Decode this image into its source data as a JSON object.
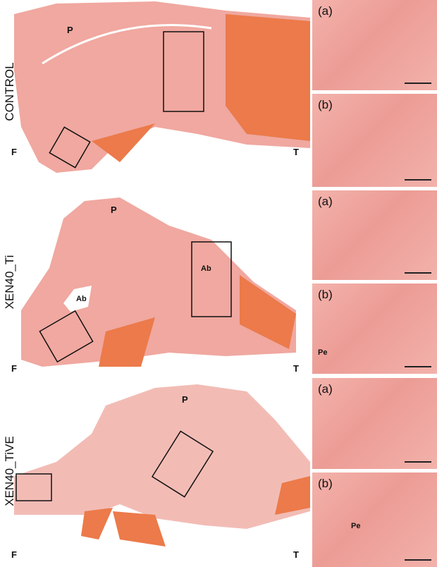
{
  "rows": [
    {
      "label": "CONTROL",
      "main_labels": {
        "p": "P",
        "f": "F",
        "t": "T"
      },
      "insets": [
        {
          "tag": "(a)"
        },
        {
          "tag": "(b)"
        }
      ]
    },
    {
      "label": "XEN40_Ti",
      "main_labels": {
        "p": "P",
        "f": "F",
        "t": "T",
        "ab1": "Ab",
        "ab2": "Ab"
      },
      "insets": [
        {
          "tag": "(a)"
        },
        {
          "tag": "(b)",
          "pe": "Pe"
        }
      ]
    },
    {
      "label": "XEN40_TiVE",
      "main_labels": {
        "p": "P",
        "f": "F",
        "t": "T"
      },
      "insets": [
        {
          "tag": "(a)"
        },
        {
          "tag": "(b)",
          "pe": "Pe"
        }
      ]
    }
  ],
  "colors": {
    "tissue": "#f0a8a0",
    "muscle": "#ec7a4a",
    "box": "#111111"
  }
}
